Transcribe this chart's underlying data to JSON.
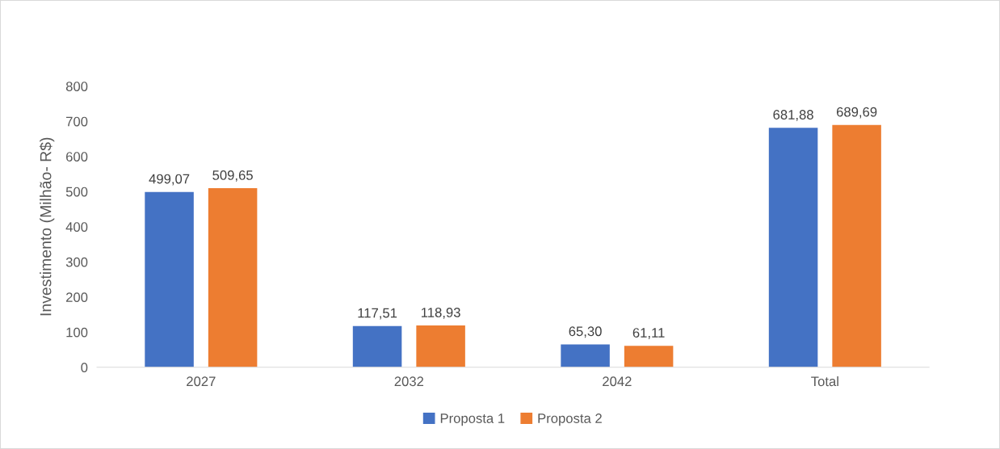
{
  "chart_data": {
    "type": "bar",
    "ylabel": "Investimento (Milhão- R$)",
    "categories": [
      "2027",
      "2032",
      "2042",
      "Total"
    ],
    "series": [
      {
        "name": "Proposta 1",
        "color": "#4472c4",
        "values": [
          499.07,
          117.51,
          65.3,
          681.88
        ],
        "value_labels": [
          "499,07",
          "117,51",
          "65,30",
          "681,88"
        ]
      },
      {
        "name": "Proposta 2",
        "color": "#ed7d31",
        "values": [
          509.65,
          118.93,
          61.11,
          689.69
        ],
        "value_labels": [
          "509,65",
          "118,93",
          "61,11",
          "689,69"
        ]
      }
    ],
    "ylim": [
      0,
      800
    ],
    "yticks": [
      0,
      100,
      200,
      300,
      400,
      500,
      600,
      700,
      800
    ],
    "grid": false,
    "legend": "bottom"
  }
}
